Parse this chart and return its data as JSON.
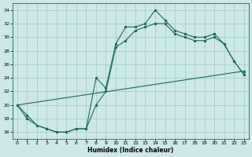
{
  "xlabel": "Humidex (Indice chaleur)",
  "bg_color": "#cce8e8",
  "grid_color": "#aacccc",
  "line_color": "#1a6b5a",
  "xlim": [
    -0.5,
    23.5
  ],
  "ylim": [
    15.0,
    35.0
  ],
  "xticks": [
    0,
    1,
    2,
    3,
    4,
    5,
    6,
    7,
    8,
    9,
    10,
    11,
    12,
    13,
    14,
    15,
    16,
    17,
    18,
    19,
    20,
    21,
    22,
    23
  ],
  "yticks": [
    16,
    18,
    20,
    22,
    24,
    26,
    28,
    30,
    32,
    34
  ],
  "line1_x": [
    0,
    1,
    2,
    3,
    4,
    5,
    6,
    7,
    8,
    9,
    10,
    11,
    12,
    13,
    14,
    15,
    16,
    17,
    18,
    19,
    20,
    21,
    22,
    23
  ],
  "line1_y": [
    20.0,
    18.0,
    17.0,
    16.5,
    16.0,
    16.0,
    16.5,
    16.5,
    24.0,
    22.5,
    29.0,
    31.5,
    31.5,
    32.0,
    34.0,
    32.5,
    31.0,
    30.5,
    30.0,
    30.0,
    30.5,
    29.0,
    26.5,
    24.5
  ],
  "line2_x": [
    0,
    1,
    2,
    3,
    4,
    5,
    6,
    7,
    8,
    9,
    10,
    11,
    12,
    13,
    14,
    15,
    16,
    17,
    18,
    19,
    20,
    21,
    22,
    23
  ],
  "line2_y": [
    20.0,
    18.5,
    17.0,
    16.5,
    16.0,
    16.0,
    16.5,
    16.5,
    20.0,
    22.0,
    28.5,
    29.5,
    31.0,
    31.5,
    32.0,
    32.0,
    30.5,
    30.0,
    29.5,
    29.5,
    30.0,
    29.0,
    26.5,
    24.5
  ],
  "line3_x": [
    0,
    23
  ],
  "line3_y": [
    20.0,
    25.0
  ]
}
